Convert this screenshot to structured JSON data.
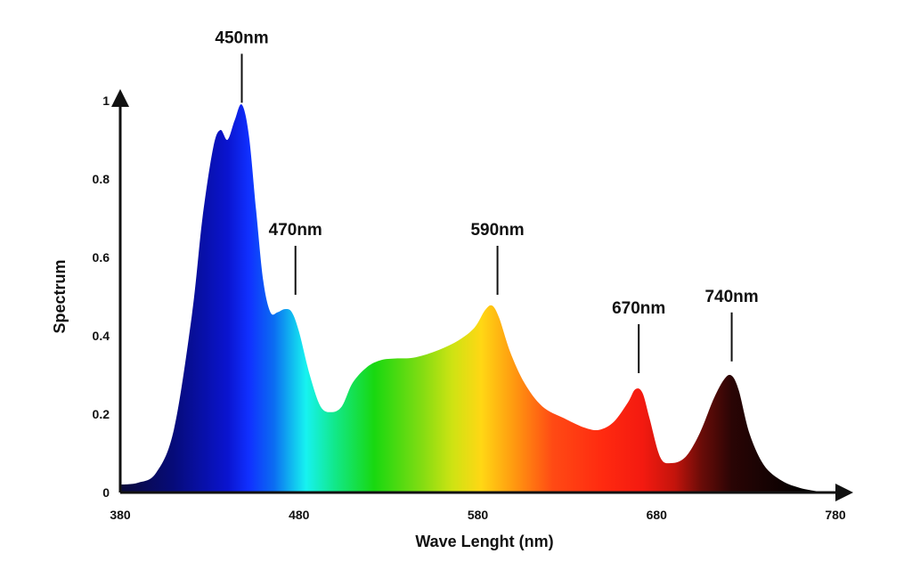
{
  "chart_data": {
    "type": "area",
    "title": "",
    "xlabel": "Wave Lenght (nm)",
    "ylabel": "Spectrum",
    "xlim": [
      380,
      780
    ],
    "ylim": [
      0,
      1
    ],
    "x_ticks": [
      "380",
      "480",
      "580",
      "680",
      "780"
    ],
    "y_ticks": [
      "0",
      "0.2",
      "0.4",
      "0.6",
      "0.8",
      "1"
    ],
    "grid": false,
    "series": [
      {
        "points": [
          [
            380,
            0.02
          ],
          [
            390,
            0.025
          ],
          [
            400,
            0.05
          ],
          [
            410,
            0.16
          ],
          [
            420,
            0.45
          ],
          [
            426,
            0.7
          ],
          [
            432,
            0.88
          ],
          [
            436,
            0.925
          ],
          [
            440,
            0.9
          ],
          [
            444,
            0.95
          ],
          [
            448,
            0.99
          ],
          [
            452,
            0.91
          ],
          [
            456,
            0.72
          ],
          [
            460,
            0.54
          ],
          [
            464,
            0.46
          ],
          [
            468,
            0.46
          ],
          [
            472,
            0.468
          ],
          [
            476,
            0.46
          ],
          [
            480,
            0.41
          ],
          [
            486,
            0.3
          ],
          [
            492,
            0.22
          ],
          [
            498,
            0.205
          ],
          [
            504,
            0.22
          ],
          [
            510,
            0.28
          ],
          [
            518,
            0.32
          ],
          [
            526,
            0.338
          ],
          [
            534,
            0.342
          ],
          [
            544,
            0.344
          ],
          [
            556,
            0.36
          ],
          [
            568,
            0.385
          ],
          [
            578,
            0.42
          ],
          [
            584,
            0.465
          ],
          [
            588,
            0.477
          ],
          [
            592,
            0.445
          ],
          [
            598,
            0.36
          ],
          [
            606,
            0.28
          ],
          [
            616,
            0.22
          ],
          [
            628,
            0.19
          ],
          [
            640,
            0.165
          ],
          [
            648,
            0.16
          ],
          [
            656,
            0.18
          ],
          [
            664,
            0.23
          ],
          [
            668,
            0.263
          ],
          [
            672,
            0.255
          ],
          [
            676,
            0.19
          ],
          [
            682,
            0.09
          ],
          [
            688,
            0.075
          ],
          [
            696,
            0.09
          ],
          [
            704,
            0.15
          ],
          [
            712,
            0.24
          ],
          [
            718,
            0.29
          ],
          [
            722,
            0.298
          ],
          [
            726,
            0.26
          ],
          [
            732,
            0.15
          ],
          [
            740,
            0.07
          ],
          [
            750,
            0.03
          ],
          [
            760,
            0.012
          ],
          [
            770,
            0.003
          ],
          [
            775,
            0.0
          ]
        ]
      }
    ],
    "annotations": [
      {
        "label": "450nm",
        "x": 448,
        "y": 0.99
      },
      {
        "label": "470nm",
        "x": 478,
        "y": 0.5
      },
      {
        "label": "590nm",
        "x": 591,
        "y": 0.5
      },
      {
        "label": "670nm",
        "x": 670,
        "y": 0.3
      },
      {
        "label": "740nm",
        "x": 722,
        "y": 0.33
      }
    ],
    "colors": {
      "axis": "#111111",
      "gradient": [
        {
          "nm": 380,
          "color": "#0a0a3a"
        },
        {
          "nm": 410,
          "color": "#060b7a"
        },
        {
          "nm": 440,
          "color": "#0a14cf"
        },
        {
          "nm": 452,
          "color": "#1030ff"
        },
        {
          "nm": 466,
          "color": "#0b6df2"
        },
        {
          "nm": 478,
          "color": "#12c9f0"
        },
        {
          "nm": 484,
          "color": "#17f2f0"
        },
        {
          "nm": 500,
          "color": "#12e88a"
        },
        {
          "nm": 522,
          "color": "#18d810"
        },
        {
          "nm": 548,
          "color": "#7fdc12"
        },
        {
          "nm": 566,
          "color": "#cfe313"
        },
        {
          "nm": 582,
          "color": "#ffd714"
        },
        {
          "nm": 600,
          "color": "#ff9a10"
        },
        {
          "nm": 622,
          "color": "#ff4a14"
        },
        {
          "nm": 650,
          "color": "#ff2a10"
        },
        {
          "nm": 672,
          "color": "#f41a10"
        },
        {
          "nm": 690,
          "color": "#c4140c"
        },
        {
          "nm": 705,
          "color": "#6a0c08"
        },
        {
          "nm": 722,
          "color": "#2a0505"
        },
        {
          "nm": 760,
          "color": "#050101"
        }
      ]
    }
  }
}
